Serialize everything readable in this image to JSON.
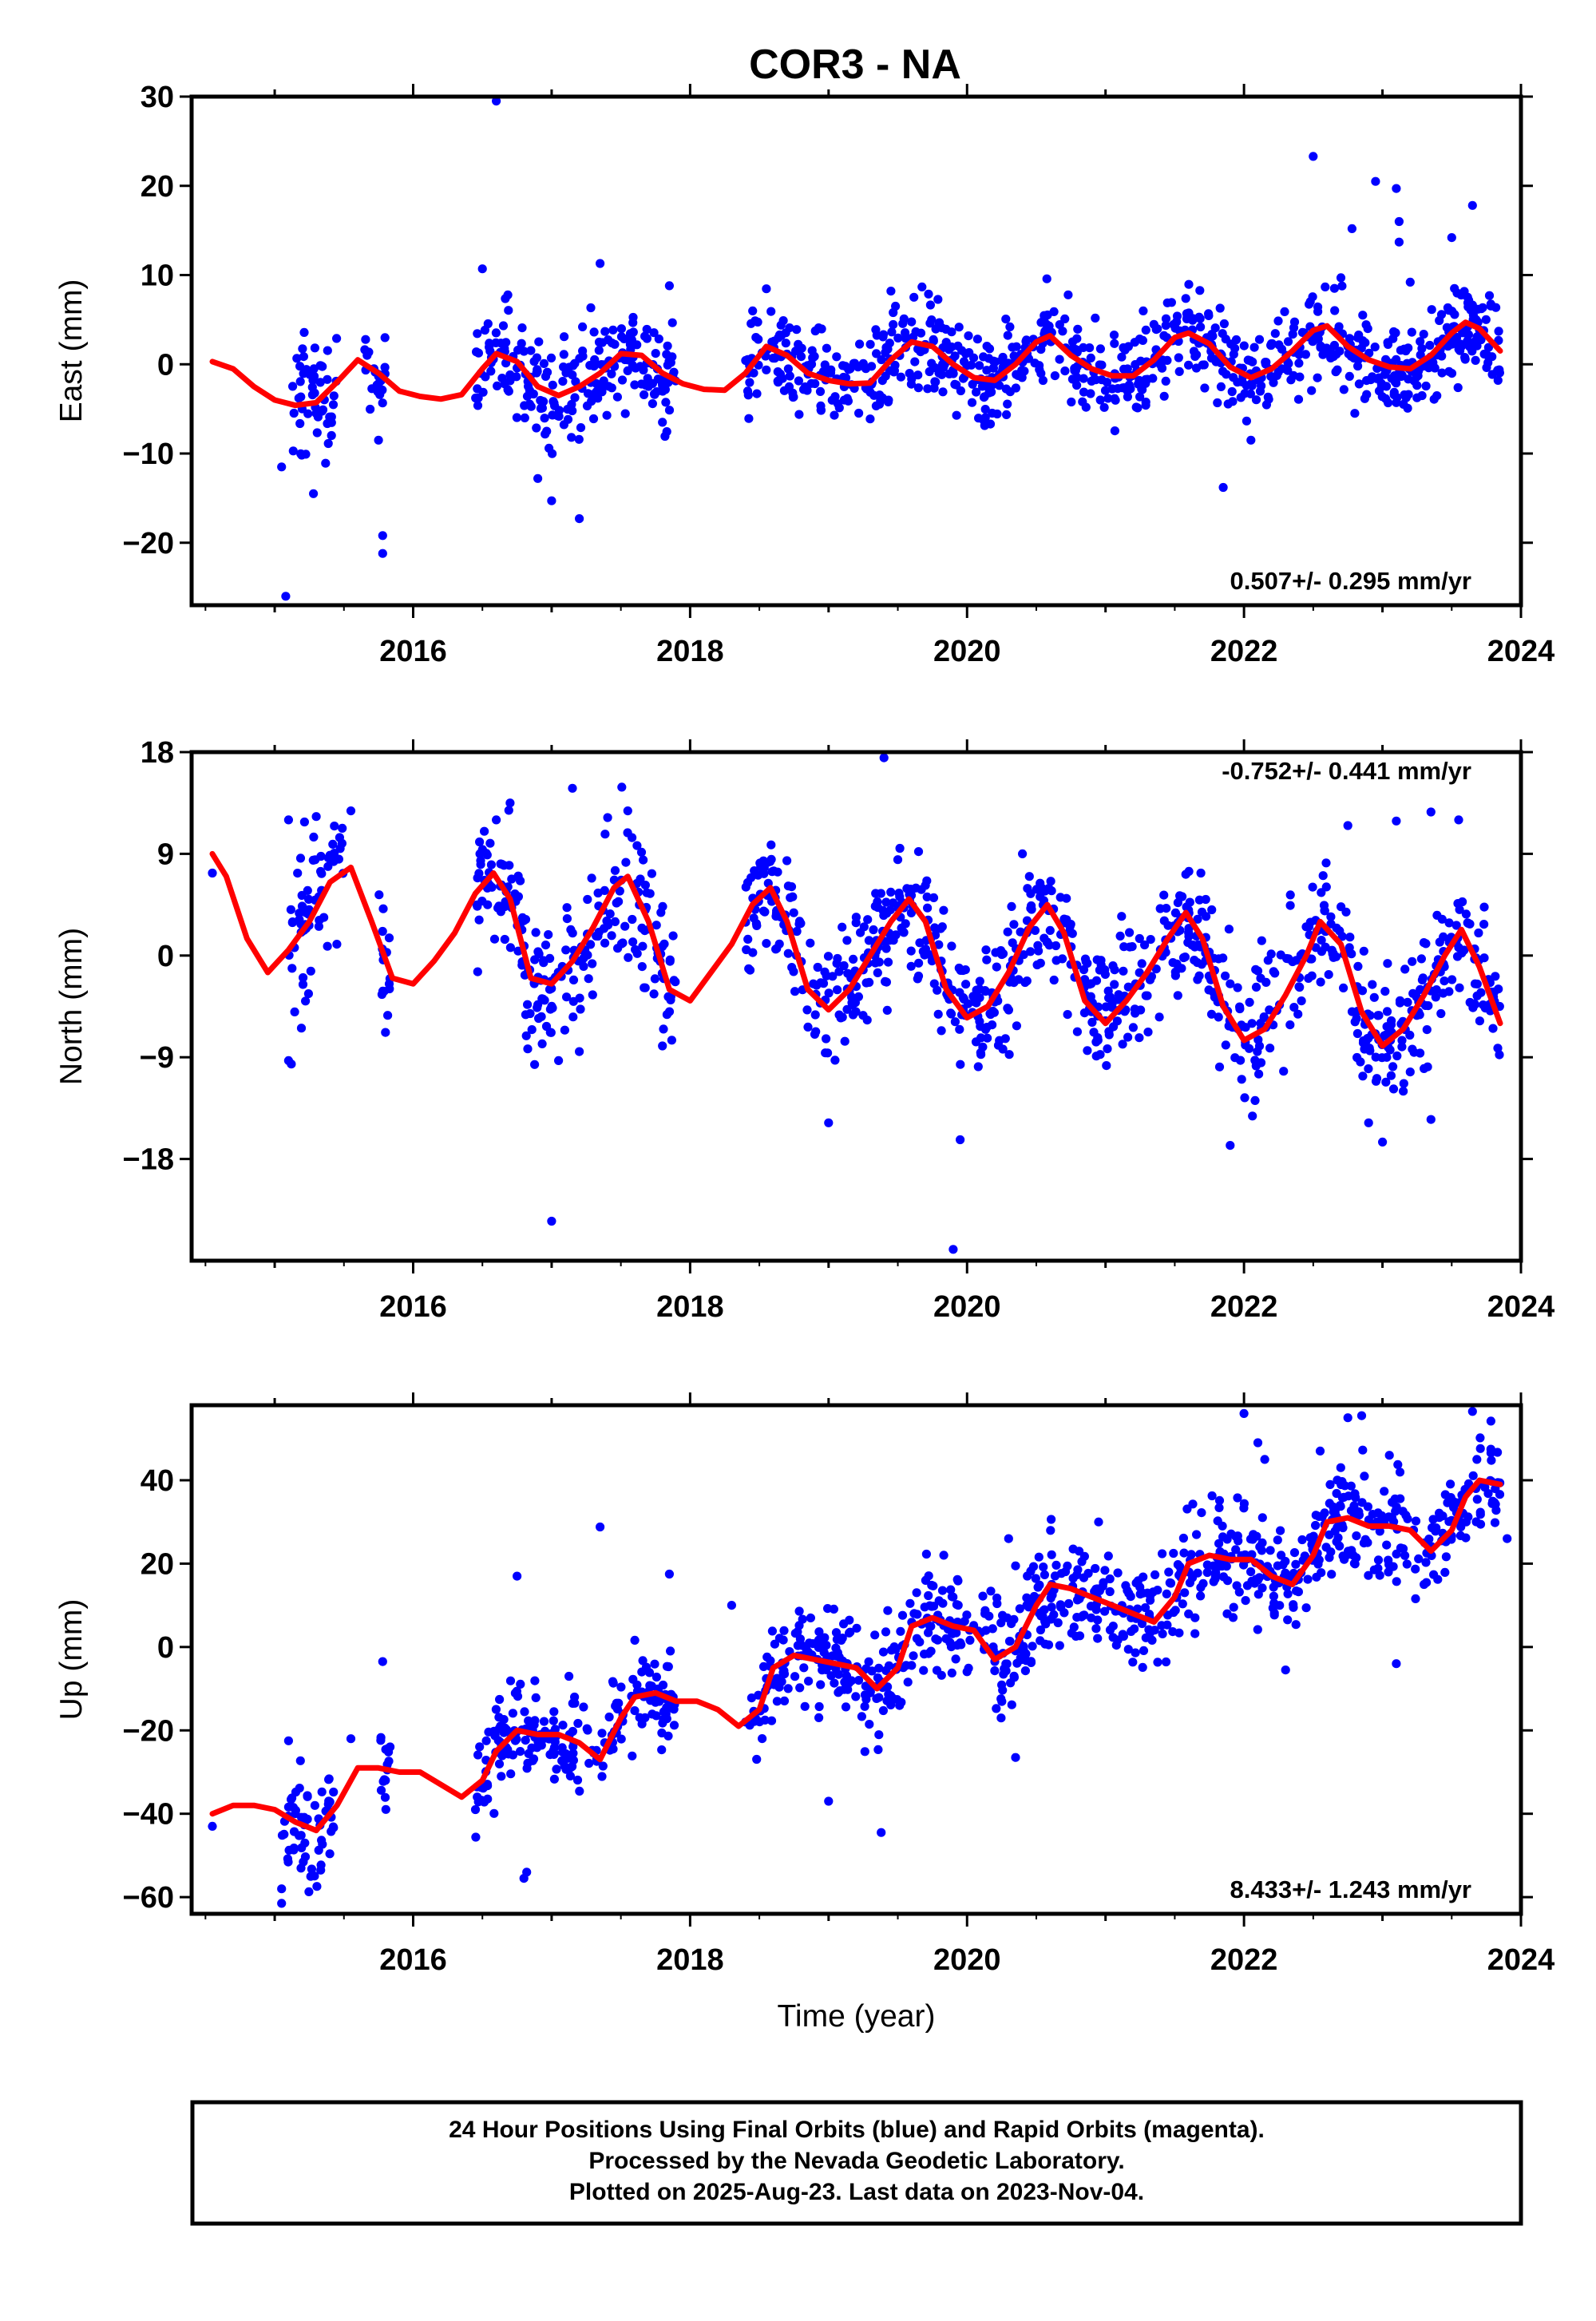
{
  "page": {
    "title": "COR3 - NA",
    "caption": [
      "24 Hour Positions Using Final Orbits (blue) and Rapid Orbits (magenta).",
      "Processed by the Nevada Geodetic Laboratory.",
      "Plotted on 2025-Aug-23. Last data on 2023-Nov-04."
    ],
    "colors": {
      "points": "#0000ff",
      "model": "#ff0000",
      "frame": "#000000"
    }
  },
  "chart_data": [
    {
      "type": "scatter",
      "panel": "east",
      "ylabel": "East (mm)",
      "xlabel": "",
      "rate_text": "0.507+/- 0.295 mm/yr",
      "rate_position": "bottom-right",
      "xlim": [
        2014.4,
        2024.0
      ],
      "ylim": [
        -27,
        30
      ],
      "x_ticks": [
        2016,
        2018,
        2020,
        2022,
        2024
      ],
      "x_tick_labels": [
        "2016",
        "2018",
        "2020",
        "2022",
        "2024"
      ],
      "y_ticks": [
        -20,
        -10,
        0,
        10,
        20,
        30
      ],
      "y_tick_labels": [
        "−20",
        "−10",
        "0",
        "10",
        "20",
        "30"
      ],
      "grid": false,
      "model": {
        "name": "",
        "x": [
          2014.55,
          2014.7,
          2014.85,
          2015.0,
          2015.15,
          2015.3,
          2015.45,
          2015.6,
          2015.75,
          2015.9,
          2016.05,
          2016.2,
          2016.35,
          2016.5,
          2016.6,
          2016.75,
          2016.9,
          2017.05,
          2017.2,
          2017.35,
          2017.5,
          2017.65,
          2017.8,
          2017.95,
          2018.1,
          2018.25,
          2018.4,
          2018.55,
          2018.7,
          2018.85,
          2019.0,
          2019.15,
          2019.3,
          2019.45,
          2019.6,
          2019.75,
          2019.9,
          2020.05,
          2020.2,
          2020.35,
          2020.5,
          2020.6,
          2020.75,
          2020.9,
          2021.05,
          2021.2,
          2021.35,
          2021.5,
          2021.6,
          2021.75,
          2021.9,
          2022.05,
          2022.2,
          2022.35,
          2022.5,
          2022.6,
          2022.75,
          2022.9,
          2023.05,
          2023.2,
          2023.35,
          2023.5,
          2023.6,
          2023.7,
          2023.85
        ],
        "y": [
          0.3,
          -0.5,
          -2.5,
          -4.0,
          -4.6,
          -4.3,
          -2.0,
          0.5,
          -1.0,
          -3.0,
          -3.6,
          -3.9,
          -3.4,
          -0.5,
          1.2,
          0.3,
          -2.5,
          -3.5,
          -2.5,
          -1.0,
          1.2,
          1.0,
          -1.0,
          -2.2,
          -2.8,
          -2.9,
          -1.0,
          2.0,
          1.0,
          -1.0,
          -1.8,
          -2.2,
          -2.1,
          0.5,
          2.5,
          2.0,
          0.0,
          -1.5,
          -1.8,
          0.0,
          2.5,
          3.2,
          1.0,
          -0.5,
          -1.3,
          -1.3,
          0.5,
          3.0,
          3.5,
          2.3,
          -0.3,
          -1.5,
          -0.5,
          1.5,
          3.8,
          4.3,
          2.0,
          0.5,
          -0.3,
          -0.5,
          1.0,
          3.5,
          4.7,
          4.0,
          1.5
        ]
      },
      "points": {
        "name": "",
        "segments": [
          {
            "x": [
              2015.1,
              2015.45
            ],
            "y_amp": 3.5
          },
          {
            "x": [
              2015.65,
              2015.8
            ],
            "y_amp": 2.0
          },
          {
            "x": [
              2016.45,
              2016.95
            ],
            "y_amp": 3.0
          },
          {
            "x": [
              2016.95,
              2017.9
            ],
            "y_amp": 3.0
          },
          {
            "x": [
              2018.4,
              2023.85
            ],
            "y_amp": 2.6
          }
        ],
        "outliers": [
          {
            "x": 2015.08,
            "y": -26.0
          },
          {
            "x": 2015.28,
            "y": -14.5
          },
          {
            "x": 2015.05,
            "y": -11.5
          },
          {
            "x": 2015.78,
            "y": -19.2
          },
          {
            "x": 2015.78,
            "y": -21.2
          },
          {
            "x": 2015.75,
            "y": -8.5
          },
          {
            "x": 2016.6,
            "y": 29.5
          },
          {
            "x": 2016.5,
            "y": 10.7
          },
          {
            "x": 2016.9,
            "y": -12.8
          },
          {
            "x": 2017.0,
            "y": -15.3
          },
          {
            "x": 2017.2,
            "y": -17.3
          },
          {
            "x": 2017.35,
            "y": 11.3
          },
          {
            "x": 2017.85,
            "y": 8.8
          },
          {
            "x": 2017.8,
            "y": -6.5
          },
          {
            "x": 2019.45,
            "y": 8.2
          },
          {
            "x": 2021.85,
            "y": -13.8
          },
          {
            "x": 2022.05,
            "y": -8.5
          },
          {
            "x": 2022.5,
            "y": 23.3
          },
          {
            "x": 2022.7,
            "y": 9.7
          },
          {
            "x": 2022.78,
            "y": 15.2
          },
          {
            "x": 2022.95,
            "y": 20.5
          },
          {
            "x": 2023.1,
            "y": 19.7
          },
          {
            "x": 2023.12,
            "y": 16.0
          },
          {
            "x": 2023.12,
            "y": 13.7
          },
          {
            "x": 2023.2,
            "y": 9.2
          },
          {
            "x": 2022.8,
            "y": -5.5
          },
          {
            "x": 2023.1,
            "y": -4.3
          },
          {
            "x": 2023.5,
            "y": 14.2
          },
          {
            "x": 2023.65,
            "y": 17.8
          }
        ]
      }
    },
    {
      "type": "scatter",
      "panel": "north",
      "ylabel": "North (mm)",
      "xlabel": "",
      "rate_text": "-0.752+/- 0.441 mm/yr",
      "rate_position": "top-right",
      "xlim": [
        2014.4,
        2024.0
      ],
      "ylim": [
        -27,
        18
      ],
      "x_ticks": [
        2016,
        2018,
        2020,
        2022,
        2024
      ],
      "x_tick_labels": [
        "2016",
        "2018",
        "2020",
        "2022",
        "2024"
      ],
      "y_ticks": [
        -18,
        -9,
        0,
        9,
        18
      ],
      "y_tick_labels": [
        "−18",
        "−9",
        "0",
        "9",
        "18"
      ],
      "grid": false,
      "model": {
        "name": "",
        "x": [
          2014.55,
          2014.65,
          2014.8,
          2014.95,
          2015.1,
          2015.25,
          2015.4,
          2015.55,
          2015.7,
          2015.85,
          2016.0,
          2016.15,
          2016.3,
          2016.45,
          2016.58,
          2016.7,
          2016.85,
          2017.0,
          2017.15,
          2017.3,
          2017.45,
          2017.55,
          2017.7,
          2017.85,
          2018.0,
          2018.15,
          2018.3,
          2018.45,
          2018.58,
          2018.7,
          2018.85,
          2019.0,
          2019.15,
          2019.3,
          2019.45,
          2019.58,
          2019.7,
          2019.85,
          2020.0,
          2020.15,
          2020.3,
          2020.45,
          2020.58,
          2020.7,
          2020.85,
          2021.0,
          2021.15,
          2021.3,
          2021.45,
          2021.58,
          2021.7,
          2021.85,
          2022.0,
          2022.15,
          2022.3,
          2022.45,
          2022.55,
          2022.7,
          2022.85,
          2023.0,
          2023.15,
          2023.3,
          2023.45,
          2023.57,
          2023.7,
          2023.85
        ],
        "y": [
          9.0,
          7.0,
          1.5,
          -1.5,
          0.5,
          3.0,
          6.5,
          7.8,
          3.0,
          -2.0,
          -2.5,
          -0.5,
          2.0,
          5.5,
          7.3,
          5.0,
          -2.0,
          -2.5,
          -0.5,
          2.5,
          6.0,
          7.0,
          3.0,
          -3.0,
          -4.0,
          -1.5,
          1.0,
          4.5,
          6.0,
          3.0,
          -3.0,
          -4.8,
          -3.0,
          0.0,
          3.0,
          5.0,
          3.0,
          -3.0,
          -5.5,
          -4.5,
          -1.5,
          2.5,
          4.5,
          2.0,
          -4.0,
          -6.0,
          -4.0,
          -1.5,
          1.5,
          3.8,
          1.5,
          -4.5,
          -7.5,
          -6.5,
          -3.5,
          0.0,
          3.0,
          1.0,
          -5.0,
          -8.0,
          -6.5,
          -3.5,
          0.0,
          2.3,
          -1.0,
          -6.0
        ]
      },
      "points": {
        "name": "",
        "segments": [
          {
            "x": [
              2015.1,
              2015.5
            ],
            "y_amp": 3.2
          },
          {
            "x": [
              2015.75,
              2015.85
            ],
            "y_amp": 2.5
          },
          {
            "x": [
              2016.45,
              2017.9
            ],
            "y_amp": 3.0
          },
          {
            "x": [
              2018.4,
              2023.85
            ],
            "y_amp": 2.8
          }
        ],
        "outliers": [
          {
            "x": 2014.55,
            "y": 7.3
          },
          {
            "x": 2015.1,
            "y": -9.3
          },
          {
            "x": 2015.12,
            "y": -9.6
          },
          {
            "x": 2015.3,
            "y": 12.3
          },
          {
            "x": 2015.1,
            "y": 12.0
          },
          {
            "x": 2015.55,
            "y": 12.8
          },
          {
            "x": 2015.8,
            "y": -6.8
          },
          {
            "x": 2016.6,
            "y": 12.0
          },
          {
            "x": 2016.7,
            "y": 13.5
          },
          {
            "x": 2017.0,
            "y": -23.5
          },
          {
            "x": 2017.05,
            "y": -9.3
          },
          {
            "x": 2017.2,
            "y": -8.5
          },
          {
            "x": 2017.15,
            "y": 14.8
          },
          {
            "x": 2017.55,
            "y": 12.8
          },
          {
            "x": 2017.8,
            "y": -8.0
          },
          {
            "x": 2019.0,
            "y": -14.8
          },
          {
            "x": 2019.4,
            "y": 17.5
          },
          {
            "x": 2019.65,
            "y": 9.2
          },
          {
            "x": 2019.9,
            "y": -26.0
          },
          {
            "x": 2019.95,
            "y": -16.3
          },
          {
            "x": 2020.4,
            "y": 9.0
          },
          {
            "x": 2021.9,
            "y": -16.8
          },
          {
            "x": 2022.75,
            "y": 11.5
          },
          {
            "x": 2022.9,
            "y": -14.8
          },
          {
            "x": 2023.0,
            "y": -16.5
          },
          {
            "x": 2023.1,
            "y": 11.9
          },
          {
            "x": 2023.35,
            "y": -14.5
          },
          {
            "x": 2023.35,
            "y": 12.7
          },
          {
            "x": 2023.55,
            "y": 12.0
          },
          {
            "x": 2023.15,
            "y": -12.0
          },
          {
            "x": 2023.2,
            "y": -10.3
          },
          {
            "x": 2023.3,
            "y": -10.0
          }
        ]
      }
    },
    {
      "type": "scatter",
      "panel": "up",
      "ylabel": "Up (mm)",
      "xlabel": "Time (year)",
      "rate_text": "8.433+/- 1.243 mm/yr",
      "rate_position": "bottom-right",
      "xlim": [
        2014.4,
        2024.0
      ],
      "ylim": [
        -64,
        58
      ],
      "x_ticks": [
        2016,
        2018,
        2020,
        2022,
        2024
      ],
      "x_tick_labels": [
        "2016",
        "2018",
        "2020",
        "2022",
        "2024"
      ],
      "y_ticks": [
        -60,
        -40,
        -20,
        0,
        20,
        40
      ],
      "y_tick_labels": [
        "−60",
        "−40",
        "−20",
        "0",
        "20",
        "40"
      ],
      "grid": false,
      "model": {
        "name": "",
        "x": [
          2014.55,
          2014.7,
          2014.85,
          2015.0,
          2015.15,
          2015.3,
          2015.45,
          2015.6,
          2015.75,
          2015.9,
          2016.05,
          2016.2,
          2016.35,
          2016.5,
          2016.6,
          2016.75,
          2016.9,
          2017.05,
          2017.2,
          2017.35,
          2017.5,
          2017.6,
          2017.75,
          2017.9,
          2018.05,
          2018.2,
          2018.35,
          2018.5,
          2018.6,
          2018.75,
          2018.9,
          2019.05,
          2019.2,
          2019.35,
          2019.5,
          2019.6,
          2019.75,
          2019.9,
          2020.05,
          2020.2,
          2020.35,
          2020.5,
          2020.6,
          2020.75,
          2020.9,
          2021.05,
          2021.2,
          2021.35,
          2021.5,
          2021.6,
          2021.75,
          2021.9,
          2022.05,
          2022.2,
          2022.35,
          2022.5,
          2022.6,
          2022.75,
          2022.9,
          2023.05,
          2023.2,
          2023.35,
          2023.5,
          2023.6,
          2023.7,
          2023.85
        ],
        "y": [
          -40,
          -38,
          -38,
          -39,
          -42,
          -44,
          -38,
          -29,
          -29,
          -30,
          -30,
          -33,
          -36,
          -32,
          -25,
          -20,
          -21,
          -21,
          -23,
          -27,
          -17,
          -12,
          -11,
          -13,
          -13,
          -15,
          -19,
          -15,
          -5,
          -2,
          -3,
          -4,
          -5,
          -10,
          -5,
          5,
          7,
          5,
          4,
          -3,
          0,
          10,
          15,
          14,
          12,
          10,
          8,
          6,
          12,
          20,
          22,
          21,
          21,
          17,
          15,
          22,
          30,
          31,
          29,
          29,
          28,
          23,
          28,
          36,
          40,
          39
        ]
      },
      "points": {
        "name": "",
        "segments": [
          {
            "x": [
              2015.05,
              2015.45
            ],
            "y_amp": 7.0
          },
          {
            "x": [
              2015.75,
              2015.85
            ],
            "y_amp": 5.0
          },
          {
            "x": [
              2016.45,
              2017.9
            ],
            "y_amp": 6.0
          },
          {
            "x": [
              2018.4,
              2023.85
            ],
            "y_amp": 6.5
          }
        ],
        "outliers": [
          {
            "x": 2014.55,
            "y": -43.0
          },
          {
            "x": 2015.05,
            "y": -61.5
          },
          {
            "x": 2015.05,
            "y": -58.0
          },
          {
            "x": 2015.1,
            "y": -22.5
          },
          {
            "x": 2015.55,
            "y": -22.0
          },
          {
            "x": 2015.78,
            "y": -3.5
          },
          {
            "x": 2015.8,
            "y": -32.0
          },
          {
            "x": 2016.45,
            "y": -39.0
          },
          {
            "x": 2016.75,
            "y": 17.0
          },
          {
            "x": 2016.8,
            "y": -55.5
          },
          {
            "x": 2016.82,
            "y": -54.0
          },
          {
            "x": 2017.35,
            "y": 28.8
          },
          {
            "x": 2017.85,
            "y": 17.5
          },
          {
            "x": 2018.3,
            "y": 10.0
          },
          {
            "x": 2019.0,
            "y": -37.0
          },
          {
            "x": 2019.38,
            "y": -44.5
          },
          {
            "x": 2020.3,
            "y": 26.0
          },
          {
            "x": 2020.35,
            "y": -26.5
          },
          {
            "x": 2020.95,
            "y": 30.0
          },
          {
            "x": 2022.0,
            "y": 56.0
          },
          {
            "x": 2022.1,
            "y": 49.0
          },
          {
            "x": 2022.15,
            "y": 45.0
          },
          {
            "x": 2022.3,
            "y": -5.5
          },
          {
            "x": 2022.55,
            "y": 47.0
          },
          {
            "x": 2022.75,
            "y": 55.0
          },
          {
            "x": 2022.85,
            "y": 55.5
          },
          {
            "x": 2023.05,
            "y": 46.0
          },
          {
            "x": 2023.1,
            "y": -4.0
          },
          {
            "x": 2023.65,
            "y": 56.5
          },
          {
            "x": 2023.9,
            "y": 26.0
          },
          {
            "x": 2023.3,
            "y": 15.0
          }
        ]
      }
    }
  ]
}
